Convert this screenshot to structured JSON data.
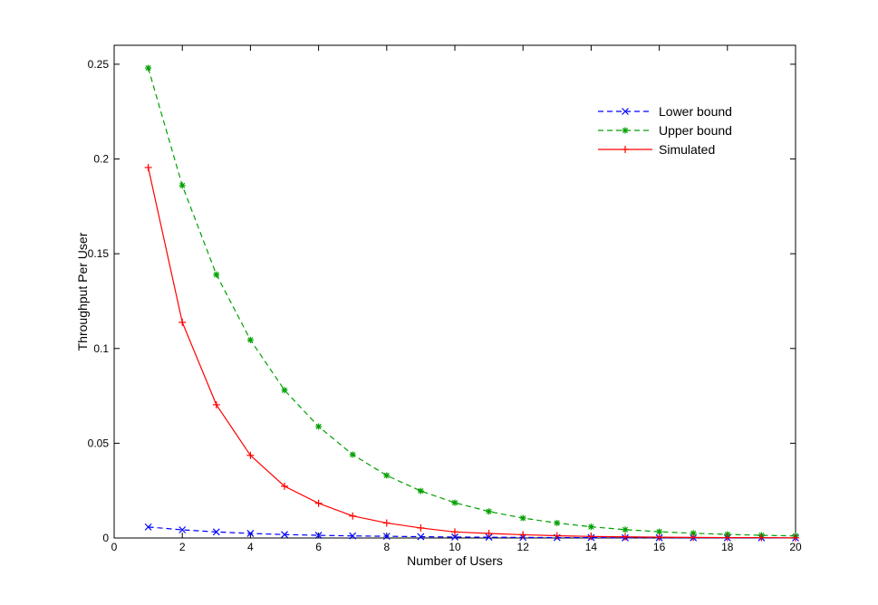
{
  "chart_data": {
    "type": "line",
    "xlabel": "Number of Users",
    "ylabel": "Throughput Per User",
    "xlim": [
      0,
      20
    ],
    "ylim": [
      0,
      0.26
    ],
    "x_ticks": [
      0,
      2,
      4,
      6,
      8,
      10,
      12,
      14,
      16,
      18,
      20
    ],
    "x_tick_labels": [
      "0",
      "2",
      "4",
      "6",
      "8",
      "10",
      "12",
      "14",
      "16",
      "18",
      "20"
    ],
    "y_ticks": [
      0,
      0.05,
      0.1,
      0.15,
      0.2,
      0.25
    ],
    "y_tick_labels": [
      "0",
      "0.05",
      "0.1",
      "0.15",
      "0.2",
      "0.25"
    ],
    "grid": false,
    "legend_position": "top-right",
    "x": [
      1,
      2,
      3,
      4,
      5,
      6,
      7,
      8,
      9,
      10,
      11,
      12,
      13,
      14,
      15,
      16,
      17,
      18,
      19,
      20
    ],
    "series": [
      {
        "name": "Lower bound",
        "color": "#0000ff",
        "line_style": "dashed",
        "marker": "x",
        "values": [
          0.0058,
          0.0043,
          0.0032,
          0.0024,
          0.0018,
          0.0014,
          0.0011,
          0.0009,
          0.0007,
          0.0005,
          0.0004,
          0.0003,
          0.0002,
          0.0002,
          0.0001,
          0.0001,
          0.0001,
          0.0001,
          0.0001,
          0.0
        ]
      },
      {
        "name": "Upper bound",
        "color": "#00a000",
        "line_style": "dashed",
        "marker": "asterisk",
        "values": [
          0.248,
          0.186,
          0.139,
          0.1045,
          0.078,
          0.0588,
          0.044,
          0.033,
          0.0248,
          0.0186,
          0.014,
          0.0105,
          0.0079,
          0.0059,
          0.0044,
          0.0033,
          0.0025,
          0.0019,
          0.0014,
          0.0011
        ]
      },
      {
        "name": "Simulated",
        "color": "#ff0000",
        "line_style": "solid",
        "marker": "plus",
        "values": [
          0.1955,
          0.1138,
          0.0703,
          0.0436,
          0.0273,
          0.0183,
          0.0116,
          0.0079,
          0.0053,
          0.0032,
          0.0024,
          0.0017,
          0.0012,
          0.0008,
          0.0006,
          0.0004,
          0.0003,
          0.0002,
          0.0002,
          0.0001
        ]
      }
    ]
  }
}
